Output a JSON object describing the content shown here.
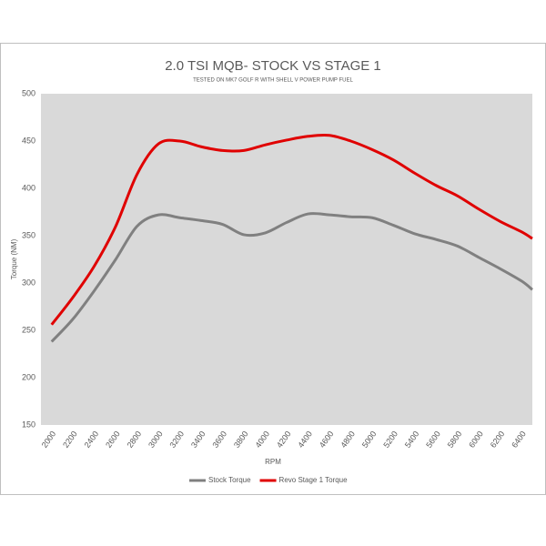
{
  "chart_data": {
    "type": "line",
    "title": "2.0 TSI MQB- STOCK VS STAGE 1",
    "subtitle": "TESTED ON MK7 GOLF R WITH SHELL V POWER PUMP FUEL",
    "x_label": "RPM",
    "y_label": "Torque (NM)",
    "x": [
      2000,
      2200,
      2400,
      2600,
      2800,
      3000,
      3200,
      3400,
      3600,
      3800,
      4000,
      4200,
      4400,
      4600,
      4800,
      5000,
      5200,
      5400,
      5600,
      5800,
      6000,
      6200,
      6400,
      6500
    ],
    "series": [
      {
        "name": "Stock Torque",
        "color": "#808080",
        "values": [
          238,
          262,
          292,
          325,
          360,
          372,
          369,
          366,
          362,
          351,
          353,
          364,
          373,
          372,
          370,
          369,
          361,
          352,
          346,
          339,
          327,
          315,
          302,
          293
        ]
      },
      {
        "name": "Revo Stage 1 Torque",
        "color": "#e00000",
        "values": [
          256,
          285,
          318,
          360,
          415,
          447,
          450,
          444,
          440,
          440,
          446,
          451,
          455,
          456,
          450,
          441,
          430,
          416,
          403,
          392,
          378,
          365,
          354,
          347
        ]
      }
    ],
    "xlim": [
      1900,
      6500
    ],
    "xticks": [
      2000,
      2200,
      2400,
      2600,
      2800,
      3000,
      3200,
      3400,
      3600,
      3800,
      4000,
      4200,
      4400,
      4600,
      4800,
      5000,
      5200,
      5400,
      5600,
      5800,
      6000,
      6200,
      6400
    ],
    "ylim": [
      150,
      500
    ],
    "yticks": [
      150,
      200,
      250,
      300,
      350,
      400,
      450,
      500
    ],
    "legend": "bottom"
  }
}
